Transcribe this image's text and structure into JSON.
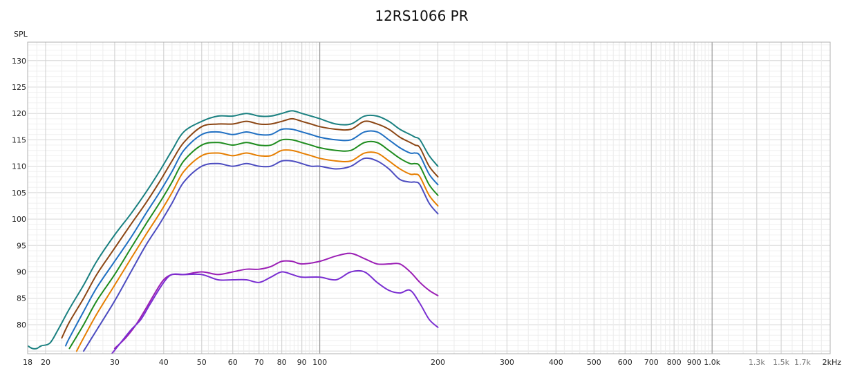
{
  "chart_data": {
    "type": "line",
    "title": "12RS1066 PR",
    "ylabel": "SPL",
    "xlabel": "",
    "x_scale": "log",
    "xlim": [
      18,
      2000
    ],
    "ylim": [
      74.5,
      133.5
    ],
    "grid": true,
    "y_ticks": [
      80,
      85,
      90,
      95,
      100,
      105,
      110,
      115,
      120,
      125,
      130
    ],
    "x_ticks": [
      {
        "v": 18,
        "label": "18"
      },
      {
        "v": 20,
        "label": "20"
      },
      {
        "v": 30,
        "label": "30"
      },
      {
        "v": 40,
        "label": "40"
      },
      {
        "v": 50,
        "label": "50"
      },
      {
        "v": 60,
        "label": "60"
      },
      {
        "v": 70,
        "label": "70"
      },
      {
        "v": 80,
        "label": "80"
      },
      {
        "v": 90,
        "label": "90"
      },
      {
        "v": 100,
        "label": "100"
      },
      {
        "v": 200,
        "label": "200"
      },
      {
        "v": 300,
        "label": "300"
      },
      {
        "v": 400,
        "label": "400"
      },
      {
        "v": 500,
        "label": "500"
      },
      {
        "v": 600,
        "label": "600"
      },
      {
        "v": 700,
        "label": "700"
      },
      {
        "v": 800,
        "label": "800"
      },
      {
        "v": 900,
        "label": "900"
      },
      {
        "v": 1000,
        "label": "1.0k"
      },
      {
        "v": 1300,
        "label": "1.3k",
        "light": true
      },
      {
        "v": 1500,
        "label": "1.5k",
        "light": true
      },
      {
        "v": 1700,
        "label": "1.7k",
        "light": true
      },
      {
        "v": 2000,
        "label": "2kHz"
      }
    ],
    "series": [
      {
        "color": "#1a8080",
        "points": [
          [
            18,
            76
          ],
          [
            18.5,
            75.5
          ],
          [
            19,
            75.5
          ],
          [
            19.5,
            76
          ],
          [
            20.5,
            76.5
          ],
          [
            21.5,
            79
          ],
          [
            23,
            83
          ],
          [
            25,
            87.5
          ],
          [
            27,
            92
          ],
          [
            30,
            97
          ],
          [
            33,
            101
          ],
          [
            36,
            105
          ],
          [
            39,
            109
          ],
          [
            42,
            113
          ],
          [
            45,
            116.5
          ],
          [
            50,
            118.5
          ],
          [
            55,
            119.5
          ],
          [
            60,
            119.5
          ],
          [
            65,
            120
          ],
          [
            70,
            119.5
          ],
          [
            75,
            119.5
          ],
          [
            80,
            120
          ],
          [
            85,
            120.5
          ],
          [
            90,
            120
          ],
          [
            95,
            119.5
          ],
          [
            100,
            119
          ],
          [
            110,
            118
          ],
          [
            120,
            118
          ],
          [
            130,
            119.5
          ],
          [
            140,
            119.5
          ],
          [
            150,
            118.5
          ],
          [
            160,
            117
          ],
          [
            170,
            116
          ],
          [
            175,
            115.5
          ],
          [
            180,
            115
          ],
          [
            190,
            112
          ],
          [
            200,
            110
          ]
        ]
      },
      {
        "color": "#8b4513",
        "points": [
          [
            22,
            77.5
          ],
          [
            23,
            80.5
          ],
          [
            25,
            85
          ],
          [
            27,
            89.5
          ],
          [
            30,
            94.5
          ],
          [
            33,
            99
          ],
          [
            36,
            103
          ],
          [
            39,
            107
          ],
          [
            42,
            111
          ],
          [
            45,
            114.5
          ],
          [
            50,
            117.5
          ],
          [
            55,
            118
          ],
          [
            60,
            118
          ],
          [
            65,
            118.5
          ],
          [
            70,
            118
          ],
          [
            75,
            118
          ],
          [
            80,
            118.5
          ],
          [
            85,
            119
          ],
          [
            90,
            118.5
          ],
          [
            95,
            118
          ],
          [
            100,
            117.5
          ],
          [
            110,
            117
          ],
          [
            120,
            117
          ],
          [
            130,
            118.5
          ],
          [
            140,
            118
          ],
          [
            150,
            117
          ],
          [
            160,
            115.5
          ],
          [
            170,
            114.5
          ],
          [
            175,
            114
          ],
          [
            180,
            113.5
          ],
          [
            190,
            110
          ],
          [
            200,
            108
          ]
        ]
      },
      {
        "color": "#1f6fc2",
        "points": [
          [
            22.5,
            76
          ],
          [
            23,
            77.5
          ],
          [
            25,
            82.5
          ],
          [
            27,
            87
          ],
          [
            30,
            92
          ],
          [
            33,
            96.5
          ],
          [
            36,
            101
          ],
          [
            39,
            105
          ],
          [
            42,
            109
          ],
          [
            45,
            113
          ],
          [
            50,
            116
          ],
          [
            55,
            116.5
          ],
          [
            60,
            116
          ],
          [
            65,
            116.5
          ],
          [
            70,
            116
          ],
          [
            75,
            116
          ],
          [
            80,
            117
          ],
          [
            85,
            117
          ],
          [
            90,
            116.5
          ],
          [
            95,
            116
          ],
          [
            100,
            115.5
          ],
          [
            110,
            115
          ],
          [
            120,
            115
          ],
          [
            130,
            116.5
          ],
          [
            140,
            116.5
          ],
          [
            150,
            115
          ],
          [
            160,
            113.5
          ],
          [
            170,
            112.5
          ],
          [
            175,
            112.5
          ],
          [
            180,
            112
          ],
          [
            190,
            108.5
          ],
          [
            200,
            106.5
          ]
        ]
      },
      {
        "color": "#1e8c1e",
        "points": [
          [
            23,
            75.5
          ],
          [
            25,
            80
          ],
          [
            27,
            84.5
          ],
          [
            30,
            89.5
          ],
          [
            33,
            94.5
          ],
          [
            36,
            99
          ],
          [
            39,
            103
          ],
          [
            42,
            107
          ],
          [
            45,
            111
          ],
          [
            50,
            114
          ],
          [
            55,
            114.5
          ],
          [
            60,
            114
          ],
          [
            65,
            114.5
          ],
          [
            70,
            114
          ],
          [
            75,
            114
          ],
          [
            80,
            115
          ],
          [
            85,
            115
          ],
          [
            90,
            114.5
          ],
          [
            95,
            114
          ],
          [
            100,
            113.5
          ],
          [
            110,
            113
          ],
          [
            120,
            113
          ],
          [
            130,
            114.5
          ],
          [
            140,
            114.5
          ],
          [
            150,
            113
          ],
          [
            160,
            111.5
          ],
          [
            170,
            110.5
          ],
          [
            175,
            110.5
          ],
          [
            180,
            110
          ],
          [
            190,
            106.5
          ],
          [
            200,
            104.5
          ]
        ]
      },
      {
        "color": "#e67e00",
        "points": [
          [
            24,
            75
          ],
          [
            25,
            77.5
          ],
          [
            27,
            82
          ],
          [
            30,
            87.5
          ],
          [
            33,
            92.5
          ],
          [
            36,
            97
          ],
          [
            39,
            101
          ],
          [
            42,
            105
          ],
          [
            45,
            109
          ],
          [
            50,
            112
          ],
          [
            55,
            112.5
          ],
          [
            60,
            112
          ],
          [
            65,
            112.5
          ],
          [
            70,
            112
          ],
          [
            75,
            112
          ],
          [
            80,
            113
          ],
          [
            85,
            113
          ],
          [
            90,
            112.5
          ],
          [
            95,
            112
          ],
          [
            100,
            111.5
          ],
          [
            110,
            111
          ],
          [
            120,
            111
          ],
          [
            130,
            112.5
          ],
          [
            140,
            112.5
          ],
          [
            150,
            111
          ],
          [
            160,
            109.5
          ],
          [
            170,
            108.5
          ],
          [
            175,
            108.5
          ],
          [
            180,
            108
          ],
          [
            190,
            104.5
          ],
          [
            200,
            102.5
          ]
        ]
      },
      {
        "color": "#4c4cc0",
        "points": [
          [
            25,
            75
          ],
          [
            27,
            79
          ],
          [
            30,
            84.5
          ],
          [
            33,
            90
          ],
          [
            36,
            95
          ],
          [
            39,
            99
          ],
          [
            42,
            103
          ],
          [
            45,
            107
          ],
          [
            50,
            110
          ],
          [
            55,
            110.5
          ],
          [
            60,
            110
          ],
          [
            65,
            110.5
          ],
          [
            70,
            110
          ],
          [
            75,
            110
          ],
          [
            80,
            111
          ],
          [
            85,
            111
          ],
          [
            90,
            110.5
          ],
          [
            95,
            110
          ],
          [
            100,
            110
          ],
          [
            110,
            109.5
          ],
          [
            120,
            110
          ],
          [
            130,
            111.5
          ],
          [
            140,
            111
          ],
          [
            150,
            109.5
          ],
          [
            160,
            107.5
          ],
          [
            170,
            107
          ],
          [
            175,
            107
          ],
          [
            180,
            106.5
          ],
          [
            190,
            103
          ],
          [
            200,
            101
          ]
        ]
      },
      {
        "color": "#9b1fb5",
        "points": [
          [
            30,
            75.5
          ],
          [
            32,
            77.5
          ],
          [
            34,
            80
          ],
          [
            36,
            83
          ],
          [
            38,
            86
          ],
          [
            40,
            88.5
          ],
          [
            42,
            89.5
          ],
          [
            45,
            89.5
          ],
          [
            50,
            90
          ],
          [
            55,
            89.5
          ],
          [
            60,
            90
          ],
          [
            65,
            90.5
          ],
          [
            70,
            90.5
          ],
          [
            75,
            91
          ],
          [
            80,
            92
          ],
          [
            85,
            92
          ],
          [
            90,
            91.5
          ],
          [
            100,
            92
          ],
          [
            110,
            93
          ],
          [
            120,
            93.5
          ],
          [
            130,
            92.5
          ],
          [
            140,
            91.5
          ],
          [
            150,
            91.5
          ],
          [
            160,
            91.5
          ],
          [
            170,
            90
          ],
          [
            180,
            88
          ],
          [
            190,
            86.5
          ],
          [
            200,
            85.5
          ]
        ]
      },
      {
        "color": "#7a2ed1",
        "points": [
          [
            29.5,
            74.5
          ],
          [
            31,
            76.5
          ],
          [
            33,
            79
          ],
          [
            35,
            81
          ],
          [
            37,
            84
          ],
          [
            40,
            88
          ],
          [
            42,
            89.5
          ],
          [
            45,
            89.5
          ],
          [
            50,
            89.5
          ],
          [
            55,
            88.5
          ],
          [
            60,
            88.5
          ],
          [
            65,
            88.5
          ],
          [
            70,
            88
          ],
          [
            75,
            89
          ],
          [
            80,
            90
          ],
          [
            85,
            89.5
          ],
          [
            90,
            89
          ],
          [
            100,
            89
          ],
          [
            110,
            88.5
          ],
          [
            120,
            90
          ],
          [
            130,
            90
          ],
          [
            140,
            88
          ],
          [
            150,
            86.5
          ],
          [
            160,
            86
          ],
          [
            170,
            86.5
          ],
          [
            180,
            84
          ],
          [
            190,
            81
          ],
          [
            200,
            79.5
          ]
        ]
      }
    ]
  }
}
